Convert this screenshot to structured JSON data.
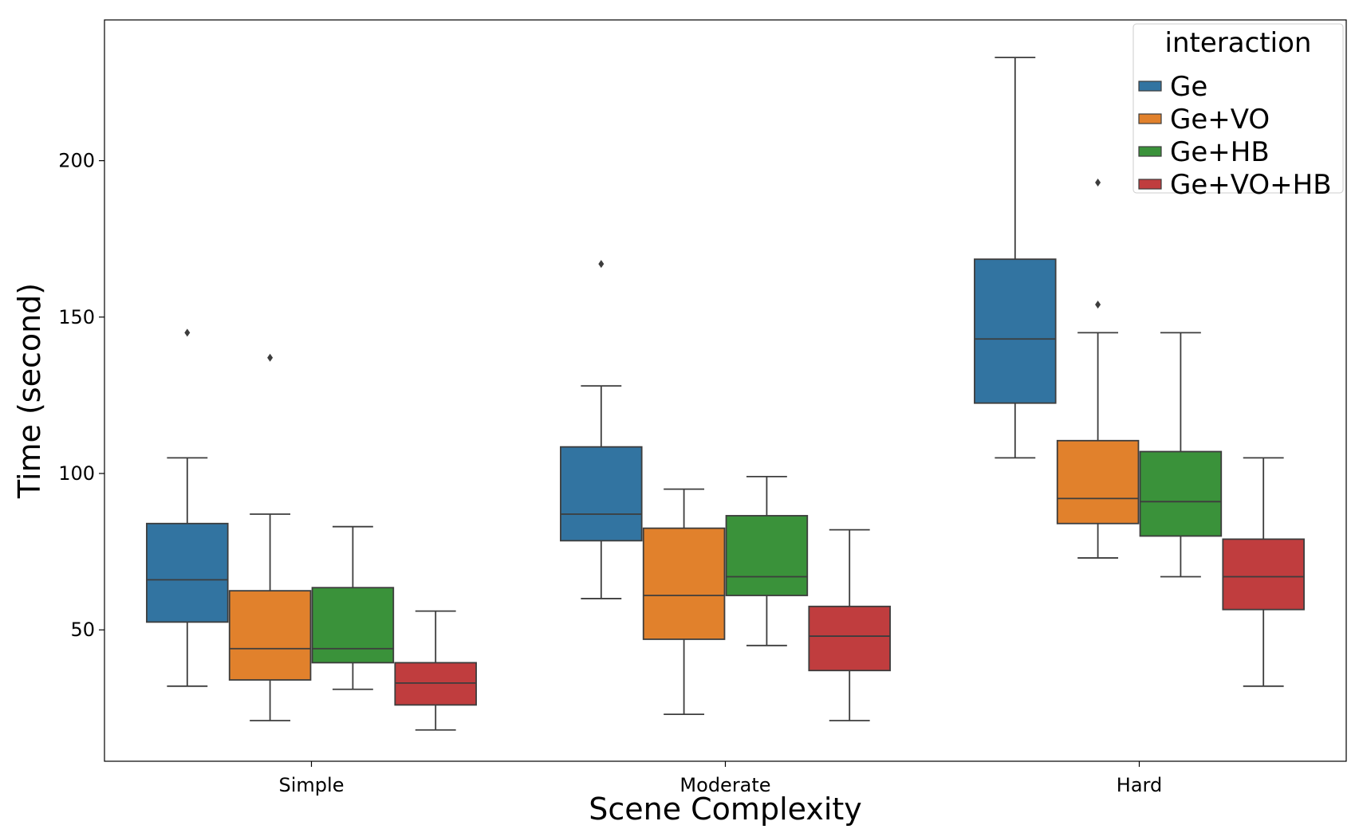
{
  "chart_data": {
    "type": "box",
    "xlabel": "Scene Complexity",
    "ylabel": "Time (second)",
    "ylim": [
      8,
      245
    ],
    "yticks": [
      50,
      100,
      150,
      200
    ],
    "categories": [
      "Simple",
      "Moderate",
      "Hard"
    ],
    "legend": {
      "title": "interaction",
      "placement": "top-right"
    },
    "grid": false,
    "series": [
      {
        "name": "Ge",
        "color": "#3274a1",
        "boxes": [
          {
            "whislo": 32,
            "q1": 52.5,
            "median": 66,
            "q3": 84,
            "whishi": 105,
            "fliers": [
              145
            ]
          },
          {
            "whislo": 60,
            "q1": 78.5,
            "median": 87,
            "q3": 108.5,
            "whishi": 128,
            "fliers": [
              167
            ]
          },
          {
            "whislo": 105,
            "q1": 122.5,
            "median": 143,
            "q3": 168.5,
            "whishi": 233,
            "fliers": []
          }
        ]
      },
      {
        "name": "Ge+VO",
        "color": "#e1812c",
        "boxes": [
          {
            "whislo": 21,
            "q1": 34,
            "median": 44,
            "q3": 62.5,
            "whishi": 87,
            "fliers": [
              137
            ]
          },
          {
            "whislo": 23,
            "q1": 47,
            "median": 61,
            "q3": 82.5,
            "whishi": 95,
            "fliers": []
          },
          {
            "whislo": 73,
            "q1": 84,
            "median": 92,
            "q3": 110.5,
            "whishi": 145,
            "fliers": [
              154,
              193
            ]
          }
        ]
      },
      {
        "name": "Ge+HB",
        "color": "#3a923a",
        "boxes": [
          {
            "whislo": 31,
            "q1": 39.5,
            "median": 44,
            "q3": 63.5,
            "whishi": 83,
            "fliers": []
          },
          {
            "whislo": 45,
            "q1": 61,
            "median": 67,
            "q3": 86.5,
            "whishi": 99,
            "fliers": []
          },
          {
            "whislo": 67,
            "q1": 80,
            "median": 91,
            "q3": 107,
            "whishi": 145,
            "fliers": []
          }
        ]
      },
      {
        "name": "Ge+VO+HB",
        "color": "#c03d3e",
        "boxes": [
          {
            "whislo": 18,
            "q1": 26,
            "median": 33,
            "q3": 39.5,
            "whishi": 56,
            "fliers": []
          },
          {
            "whislo": 21,
            "q1": 37,
            "median": 48,
            "q3": 57.5,
            "whishi": 82,
            "fliers": []
          },
          {
            "whislo": 32,
            "q1": 56.5,
            "median": 67,
            "q3": 79,
            "whishi": 105,
            "fliers": []
          }
        ]
      }
    ]
  }
}
